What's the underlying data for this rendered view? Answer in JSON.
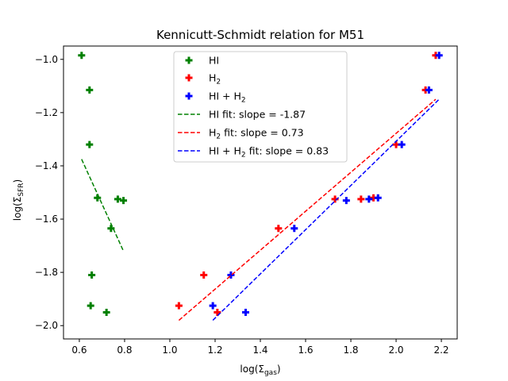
{
  "chart_data": {
    "type": "scatter",
    "title": "Kennicutt-Schmidt relation for M51",
    "xlabel": "log(Σgas)",
    "ylabel": "log(ΣSFR)",
    "xlim": [
      0.53,
      2.27
    ],
    "ylim": [
      -2.05,
      -0.95
    ],
    "xticks": [
      0.6,
      0.8,
      1.0,
      1.2,
      1.4,
      1.6,
      1.8,
      2.0,
      2.2
    ],
    "yticks": [
      -2.0,
      -1.8,
      -1.6,
      -1.4,
      -1.2,
      -1.0
    ],
    "legend_position": "upper-center",
    "series": [
      {
        "name": "HI",
        "color": "#008000",
        "marker": "plus",
        "points": [
          [
            0.61,
            -0.985
          ],
          [
            0.645,
            -1.115
          ],
          [
            0.645,
            -1.32
          ],
          [
            0.68,
            -1.52
          ],
          [
            0.74,
            -1.635
          ],
          [
            0.77,
            -1.525
          ],
          [
            0.795,
            -1.53
          ],
          [
            0.655,
            -1.81
          ],
          [
            0.65,
            -1.925
          ],
          [
            0.72,
            -1.95
          ]
        ]
      },
      {
        "name": "H2",
        "color": "#ff0000",
        "marker": "plus",
        "points": [
          [
            1.04,
            -1.925
          ],
          [
            1.15,
            -1.81
          ],
          [
            1.21,
            -1.95
          ],
          [
            1.48,
            -1.635
          ],
          [
            1.73,
            -1.525
          ],
          [
            1.845,
            -1.525
          ],
          [
            1.9,
            -1.52
          ],
          [
            2.0,
            -1.32
          ],
          [
            2.13,
            -1.115
          ],
          [
            2.175,
            -0.985
          ]
        ]
      },
      {
        "name": "HI + H2",
        "color": "#0000ff",
        "marker": "plus",
        "points": [
          [
            1.19,
            -1.925
          ],
          [
            1.27,
            -1.81
          ],
          [
            1.335,
            -1.95
          ],
          [
            1.55,
            -1.635
          ],
          [
            1.78,
            -1.53
          ],
          [
            1.88,
            -1.525
          ],
          [
            1.92,
            -1.52
          ],
          [
            2.025,
            -1.32
          ],
          [
            2.145,
            -1.115
          ],
          [
            2.19,
            -0.985
          ]
        ]
      }
    ],
    "fits": [
      {
        "name": "HI fit: slope = -1.87",
        "color": "#008000",
        "x": [
          0.61,
          0.795
        ],
        "y": [
          -1.375,
          -1.72
        ]
      },
      {
        "name": "H2 fit: slope = 0.73",
        "color": "#ff0000",
        "x": [
          1.04,
          2.175
        ],
        "y": [
          -1.98,
          -1.15
        ]
      },
      {
        "name": "HI + H2 fit: slope = 0.83",
        "color": "#0000ff",
        "x": [
          1.19,
          2.19
        ],
        "y": [
          -1.98,
          -1.15
        ]
      }
    ]
  }
}
